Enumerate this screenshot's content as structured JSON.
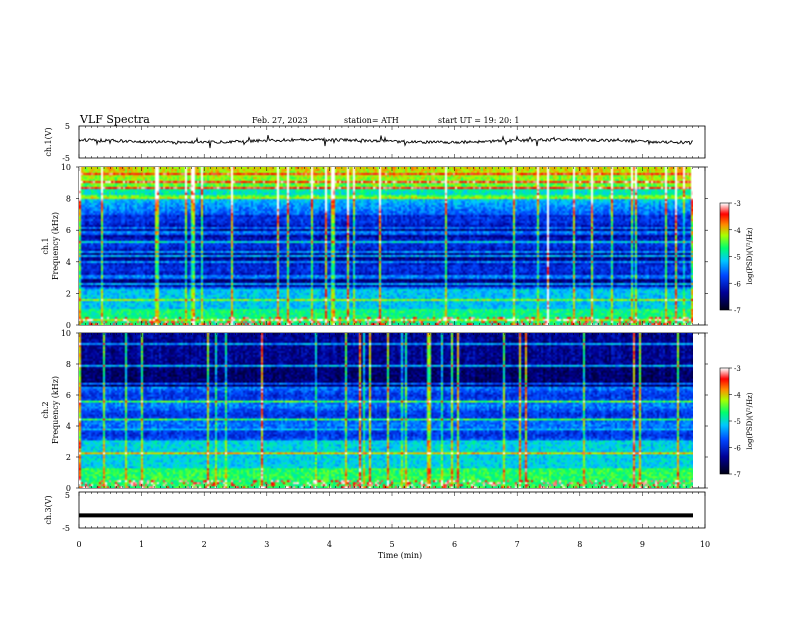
{
  "header": {
    "title": "VLF  Spectra",
    "date": "Feb. 27, 2023",
    "station": "station= ATH",
    "start": "start  UT  =    19: 20: 1"
  },
  "colors": {
    "trace": "#000000",
    "spectrogram_scale": [
      "#000020",
      "#0000a0",
      "#0050ff",
      "#00d0ff",
      "#00ff60",
      "#c8ff00",
      "#ff8000",
      "#ff0000",
      "#ffffff"
    ]
  },
  "chart_data": [
    {
      "type": "line",
      "name": "ch1-waveform",
      "ylabel": "ch.1(V)",
      "yticks": [
        "5",
        "-5"
      ],
      "ylim": [
        -5,
        5
      ],
      "x_range_min": [
        0,
        10
      ],
      "baseline_v": 0.3
    },
    {
      "type": "heatmap",
      "name": "ch1-spectrogram",
      "ylabel_top": "ch.1",
      "ylabel": "Frequency  (kHz)",
      "yticks": [
        "10",
        "8",
        "6",
        "4",
        "2",
        "0"
      ],
      "ylim_khz": [
        0,
        10
      ],
      "colorbar_label": "log(PSD)(V²/Hz)",
      "colorbar_ticks": [
        "-3",
        "-4",
        "-5",
        "-6",
        "-7"
      ],
      "colorbar_range": [
        -7,
        -3
      ]
    },
    {
      "type": "heatmap",
      "name": "ch2-spectrogram",
      "ylabel_top": "ch.2",
      "ylabel": "Frequency  (kHz)",
      "yticks": [
        "10",
        "8",
        "6",
        "4",
        "2",
        "0"
      ],
      "ylim_khz": [
        0,
        10
      ],
      "colorbar_label": "log(PSD)(V²/Hz)",
      "colorbar_ticks": [
        "-3",
        "-4",
        "-5",
        "-6",
        "-7"
      ],
      "colorbar_range": [
        -7,
        -3
      ]
    },
    {
      "type": "line",
      "name": "ch3-waveform",
      "ylabel": "ch.3(V)",
      "yticks": [
        "5",
        "-5"
      ],
      "ylim": [
        -5,
        5
      ],
      "baseline_v": -1.5
    }
  ],
  "xaxis": {
    "label": "Time  (min)",
    "ticks": [
      "0",
      "1",
      "2",
      "3",
      "4",
      "5",
      "6",
      "7",
      "8",
      "9",
      "10"
    ],
    "range": [
      0,
      10
    ]
  }
}
